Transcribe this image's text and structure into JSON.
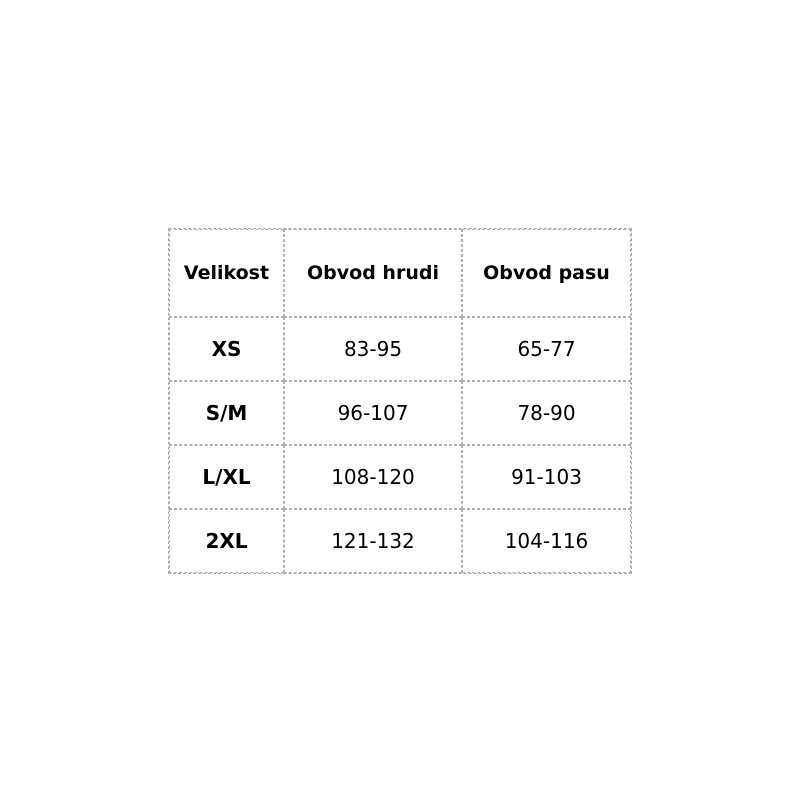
{
  "table": {
    "headers": [
      "Velikost",
      "Obvod hrudi",
      "Obvod pasu"
    ],
    "rows": [
      [
        "XS",
        "83-95",
        "65-77"
      ],
      [
        "S/M",
        "96-107",
        "78-90"
      ],
      [
        "L/XL",
        "108-120",
        "91-103"
      ],
      [
        "2XL",
        "121-132",
        "104-116"
      ]
    ]
  }
}
